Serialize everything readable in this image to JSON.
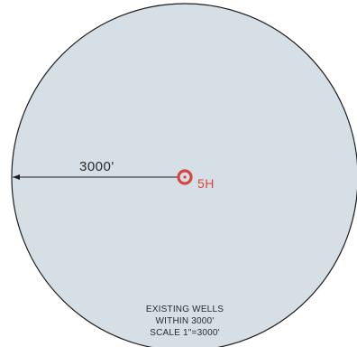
{
  "map": {
    "radius_label": "3000'",
    "well": {
      "label": "5H",
      "color": "#d6463f"
    },
    "legend": {
      "line1": "EXISTING WELLS",
      "line2": "WITHIN 3000'",
      "line3": "SCALE  1\"=3000'"
    },
    "colors": {
      "circle_fill": "#d6dfe6",
      "circle_stroke": "#1e1e1e",
      "background": "#ffffff"
    }
  }
}
